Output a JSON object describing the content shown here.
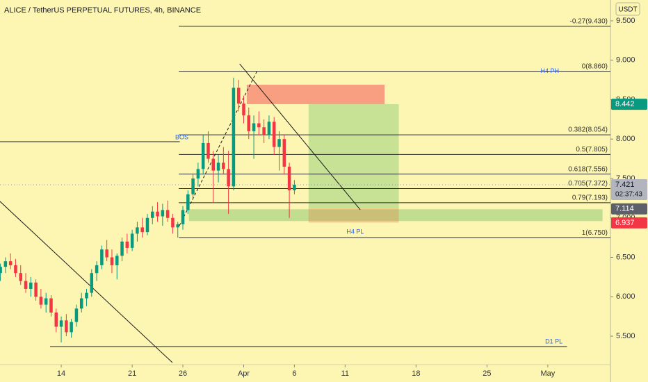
{
  "chart_data": {
    "type": "candlestick",
    "title": "ALICE / TetherUS PERPETUAL FUTURES, 4h, BINANCE",
    "currency": "USDT",
    "up_color": "#089981",
    "down_color": "#f23645",
    "x": [
      8,
      8.5,
      9,
      9.5,
      10,
      10.5,
      11,
      11.5,
      12,
      12.5,
      13,
      13.5,
      14,
      14.5,
      15,
      15.5,
      16,
      16.5,
      17,
      17.5,
      18,
      18.5,
      19,
      19.5,
      20,
      20.5,
      21,
      21.5,
      22,
      22.5,
      23,
      23.5,
      24,
      24.5,
      25,
      25.5,
      26,
      26.5,
      27,
      27.5,
      28,
      28.5,
      29,
      29.5,
      30,
      30.5,
      31,
      31.5,
      32,
      32.5,
      33,
      33.5,
      34,
      34.5,
      35,
      35.5,
      36,
      36.5,
      37
    ],
    "open": [
      6.3,
      6.38,
      6.45,
      6.4,
      6.3,
      6.2,
      6.1,
      6.18,
      6.0,
      5.9,
      5.98,
      5.8,
      5.62,
      5.7,
      5.55,
      5.68,
      5.85,
      5.98,
      6.05,
      6.3,
      6.4,
      6.6,
      6.5,
      6.4,
      6.52,
      6.7,
      6.62,
      6.8,
      6.88,
      6.82,
      7.0,
      7.08,
      7.02,
      7.1,
      7.0,
      6.88,
      6.92,
      7.1,
      7.3,
      7.5,
      7.62,
      7.95,
      7.75,
      7.6,
      7.7,
      7.62,
      7.4,
      8.65,
      8.45,
      8.3,
      8.1,
      8.2,
      8.15,
      8.05,
      8.22,
      7.9,
      8.0,
      7.65,
      7.35
    ],
    "high": [
      6.42,
      6.5,
      6.55,
      6.48,
      6.4,
      6.3,
      6.25,
      6.22,
      6.1,
      6.05,
      6.02,
      5.85,
      5.75,
      5.78,
      5.72,
      5.9,
      6.05,
      6.1,
      6.35,
      6.45,
      6.65,
      6.72,
      6.6,
      6.55,
      6.75,
      6.8,
      6.85,
      6.95,
      7.0,
      7.05,
      7.15,
      7.2,
      7.18,
      7.22,
      7.05,
      6.95,
      7.15,
      7.35,
      7.55,
      7.7,
      8.05,
      8.1,
      7.85,
      7.8,
      7.9,
      7.85,
      8.78,
      8.75,
      8.55,
      8.4,
      8.3,
      8.35,
      8.25,
      8.3,
      8.28,
      8.1,
      8.05,
      7.7,
      7.48
    ],
    "low": [
      6.2,
      6.3,
      6.35,
      6.25,
      6.15,
      6.05,
      6.0,
      5.95,
      5.85,
      5.8,
      5.75,
      5.55,
      5.42,
      5.5,
      5.48,
      5.62,
      5.8,
      5.88,
      6.0,
      6.2,
      6.35,
      6.45,
      6.3,
      6.22,
      6.45,
      6.55,
      6.58,
      6.7,
      6.75,
      6.78,
      6.92,
      6.95,
      6.9,
      6.95,
      6.8,
      6.75,
      6.85,
      7.05,
      7.25,
      7.4,
      7.55,
      7.7,
      7.2,
      7.45,
      7.55,
      7.05,
      7.35,
      8.35,
      8.2,
      8.0,
      7.75,
      8.05,
      7.95,
      8.0,
      7.8,
      7.6,
      7.55,
      7.0,
      7.3
    ],
    "close": [
      6.38,
      6.45,
      6.4,
      6.3,
      6.2,
      6.1,
      6.18,
      6.0,
      5.9,
      5.98,
      5.8,
      5.62,
      5.7,
      5.55,
      5.68,
      5.85,
      5.98,
      6.05,
      6.3,
      6.4,
      6.6,
      6.5,
      6.4,
      6.52,
      6.7,
      6.62,
      6.8,
      6.88,
      6.82,
      7.0,
      7.08,
      7.02,
      7.1,
      7.0,
      6.88,
      6.92,
      7.1,
      7.3,
      7.5,
      7.62,
      7.95,
      7.75,
      7.6,
      7.7,
      7.62,
      7.4,
      8.65,
      8.45,
      8.3,
      8.1,
      8.2,
      8.15,
      8.05,
      8.22,
      7.9,
      8.0,
      7.65,
      7.35,
      7.421
    ],
    "xlim": [
      7.96,
      68.18
    ],
    "ylim": [
      5.183,
      9.764
    ],
    "xticks": [
      {
        "value": 14,
        "label": "14"
      },
      {
        "value": 21,
        "label": "21"
      },
      {
        "value": 26,
        "label": "26"
      },
      {
        "value": 32,
        "label": "Apr"
      },
      {
        "value": 37,
        "label": "6"
      },
      {
        "value": 42,
        "label": "11"
      },
      {
        "value": 49,
        "label": "18"
      },
      {
        "value": 56,
        "label": "25"
      },
      {
        "value": 62,
        "label": "May"
      }
    ],
    "yticks": [
      {
        "value": 9.5,
        "label": "9.500"
      },
      {
        "value": 9,
        "label": "9.000"
      },
      {
        "value": 8.5,
        "label": "8.500"
      },
      {
        "value": 8,
        "label": "8.000"
      },
      {
        "value": 7.5,
        "label": "7.500"
      },
      {
        "value": 7,
        "label": "7.000"
      },
      {
        "value": 6.5,
        "label": "6.500"
      },
      {
        "value": 6,
        "label": "6.000"
      },
      {
        "value": 5.5,
        "label": "5.500"
      }
    ],
    "fib_start": 25.6,
    "fib_levels": [
      {
        "value": 9.43,
        "label": "-0.27(9.430)"
      },
      {
        "value": 8.86,
        "label": "0(8.860)"
      },
      {
        "value": 8.054,
        "label": "0.382(8.054)"
      },
      {
        "value": 7.805,
        "label": "0.5(7.805)"
      },
      {
        "value": 7.556,
        "label": "0.618(7.556)"
      },
      {
        "value": 7.372,
        "label": "0.705(7.372)"
      },
      {
        "value": 7.193,
        "label": "0.79(7.193)"
      },
      {
        "value": 6.75,
        "label": "1(6.750)"
      }
    ],
    "zones": [
      {
        "x": [
          32.3,
          45.9
        ],
        "y": [
          8.443,
          8.69
        ],
        "color": "rgba(242,54,69,0.45)"
      },
      {
        "x": [
          38.4,
          47.3
        ],
        "y": [
          7.12,
          8.443
        ],
        "color": "rgba(76,175,80,0.3)"
      },
      {
        "x": [
          26.6,
          67.4
        ],
        "y": [
          6.96,
          7.11
        ],
        "color": "rgba(76,175,80,0.35)"
      },
      {
        "x": [
          38.4,
          47.3
        ],
        "y": [
          6.94,
          7.12
        ],
        "color": "rgba(230,120,60,0.3)"
      }
    ],
    "lines": [
      {
        "x": [
          7.96,
          24.97
        ],
        "y": [
          7.209,
          5.165
        ],
        "dash": false
      },
      {
        "x": [
          31.6,
          43.5
        ],
        "y": [
          8.954,
          7.104
        ],
        "dash": false
      },
      {
        "x": [
          25.65,
          33.33
        ],
        "y": [
          6.9,
          8.866
        ],
        "dash": true
      },
      {
        "x": [
          7.96,
          25.7
        ],
        "y": [
          7.967,
          7.967
        ],
        "dash": false
      },
      {
        "x": [
          12.9,
          63.9
        ],
        "y": [
          5.368,
          5.368
        ],
        "dash": false
      }
    ],
    "annotations": [
      {
        "text": "BOS",
        "x": 25.9,
        "y": 8.02
      },
      {
        "text": "H4 PH",
        "x": 62.2,
        "y": 8.86
      },
      {
        "text": "H4 PL",
        "x": 43.0,
        "y": 6.82
      },
      {
        "text": "D1 PL",
        "x": 62.6,
        "y": 5.43
      }
    ],
    "price_tags": [
      {
        "value": 8.442,
        "color": "#089981"
      },
      {
        "value": 7.421,
        "color": "#b2b5be",
        "timer": "02:37:43"
      },
      {
        "value": 7.114,
        "color": "#5d606b"
      },
      {
        "value": 6.937,
        "color": "#f23645"
      }
    ]
  }
}
